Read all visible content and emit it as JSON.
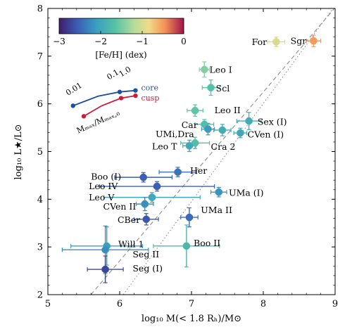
{
  "chart_data": {
    "type": "scatter",
    "xlabel": "log₁₀ M(< 1.8 Rₕ)/M⊙",
    "ylabel": "log₁₀ L★/L⊙",
    "xlim": [
      5,
      9
    ],
    "ylim": [
      2,
      8
    ],
    "xticks": [
      "5",
      "6",
      "7",
      "8",
      "9"
    ],
    "yticks": [
      "2",
      "3",
      "4",
      "5",
      "6",
      "7",
      "8"
    ],
    "grid": false,
    "colorbar": {
      "label": "[Fe/H]  (dex)",
      "range": [
        -3,
        0
      ],
      "ticks": [
        "−3",
        "−2",
        "−1",
        "0"
      ],
      "placement": "top-left"
    },
    "points": [
      {
        "name": "Sgr",
        "x": 8.7,
        "y": 7.32,
        "xerr": 0.1,
        "yerr": 0.12,
        "feh": -0.5
      },
      {
        "name": "For",
        "x": 8.18,
        "y": 7.3,
        "xerr": 0.12,
        "yerr": 0.1,
        "feh": -0.99
      },
      {
        "name": "Leo I",
        "x": 7.18,
        "y": 6.72,
        "xerr": 0.07,
        "yerr": 0.16,
        "feh": -1.43
      },
      {
        "name": "Scl",
        "x": 7.27,
        "y": 6.34,
        "xerr": 0.12,
        "yerr": 0.16,
        "feh": -1.68
      },
      {
        "name": "Leo II",
        "x": 7.05,
        "y": 5.86,
        "xerr": 0.11,
        "yerr": 0.12,
        "feh": -1.62
      },
      {
        "name": "Sex (I)",
        "x": 7.8,
        "y": 5.64,
        "xerr": 0.17,
        "yerr": 0.18,
        "feh": -1.93
      },
      {
        "name": "Car",
        "x": 7.18,
        "y": 5.57,
        "xerr": 0.13,
        "yerr": 0.1,
        "feh": -1.72
      },
      {
        "name": "UMi,Dra",
        "x": 7.23,
        "y": 5.47,
        "xerr": 0.09,
        "yerr": 0.12,
        "feh": -2.13
      },
      {
        "name": "UMi,Dra",
        "x": 7.43,
        "y": 5.45,
        "xerr": 0.12,
        "yerr": 0.12,
        "feh": -1.93
      },
      {
        "name": "CVen (I)",
        "x": 7.68,
        "y": 5.39,
        "xerr": 0.09,
        "yerr": 0.1,
        "feh": -1.98
      },
      {
        "name": "Cra 2",
        "x": 7.05,
        "y": 5.18,
        "xerr": 0.2,
        "yerr": 0.12,
        "feh": -1.7
      },
      {
        "name": "Leo T",
        "x": 6.97,
        "y": 5.12,
        "xerr": 0.09,
        "yerr": 0.12,
        "feh": -1.99
      },
      {
        "name": "Her",
        "x": 6.81,
        "y": 4.57,
        "xerr": 0.26,
        "yerr": 0.1,
        "feh": -2.41
      },
      {
        "name": "Boo (I)",
        "x": 6.33,
        "y": 4.46,
        "xerr": 0.4,
        "yerr": 0.1,
        "feh": -2.55
      },
      {
        "name": "Leo IV",
        "x": 6.52,
        "y": 4.27,
        "xerr": 0.8,
        "yerr": 0.1,
        "feh": -2.54
      },
      {
        "name": "UMa (I)",
        "x": 7.38,
        "y": 4.15,
        "xerr": 0.11,
        "yerr": 0.1,
        "feh": -2.18
      },
      {
        "name": "Leo V",
        "x": 6.45,
        "y": 4.04,
        "xerr": 0.67,
        "yerr": 0.1,
        "feh": -2.0
      },
      {
        "name": "CVen II",
        "x": 6.35,
        "y": 3.9,
        "xerr": 0.12,
        "yerr": 0.14,
        "feh": -2.21
      },
      {
        "name": "UMa II",
        "x": 6.97,
        "y": 3.62,
        "xerr": 0.12,
        "yerr": 0.2,
        "feh": -2.47
      },
      {
        "name": "CBer",
        "x": 6.37,
        "y": 3.58,
        "xerr": 0.17,
        "yerr": 0.12,
        "feh": -2.6
      },
      {
        "name": "Boo II",
        "x": 6.93,
        "y": 3.02,
        "xerr": 0.46,
        "yerr": 0.44,
        "feh": -1.79
      },
      {
        "name": "Will 1",
        "x": 5.82,
        "y": 3.02,
        "xerr": 0.5,
        "yerr": 0.4,
        "feh": -2.1
      },
      {
        "name": "Seg II",
        "x": 5.8,
        "y": 2.94,
        "xerr": 0.6,
        "yerr": 0.5,
        "feh": -2.22
      },
      {
        "name": "Seg (I)",
        "x": 5.8,
        "y": 2.53,
        "xerr": 0.25,
        "yerr": 0.28,
        "feh": -2.72
      }
    ],
    "point_labels": [
      {
        "text": "Sgr",
        "x": 7.9,
        "y": 7.32
      },
      {
        "text": "For",
        "x": 7.93,
        "y": 7.3
      },
      {
        "text": "Leo I",
        "x": 7.25,
        "y": 6.72
      },
      {
        "text": "Scl",
        "x": 7.34,
        "y": 6.33
      },
      {
        "text": "Leo II",
        "x": 7.32,
        "y": 5.87
      },
      {
        "text": "Sex (I)",
        "x": 7.92,
        "y": 5.63
      },
      {
        "text": "Car",
        "x": 6.86,
        "y": 5.56
      },
      {
        "text": "UMi,Dra",
        "x": 6.5,
        "y": 5.37
      },
      {
        "text": "CVen (I)",
        "x": 7.78,
        "y": 5.36
      },
      {
        "text": "Cra 2",
        "x": 7.27,
        "y": 5.1
      },
      {
        "text": "Leo T",
        "x": 6.45,
        "y": 5.11
      },
      {
        "text": "Her",
        "x": 6.98,
        "y": 4.6
      },
      {
        "text": "Boo (I)",
        "x": 5.6,
        "y": 4.48
      },
      {
        "text": "Leo IV",
        "x": 5.57,
        "y": 4.28
      },
      {
        "text": "UMa (I)",
        "x": 7.52,
        "y": 4.14
      },
      {
        "text": "Leo V",
        "x": 5.57,
        "y": 4.04
      },
      {
        "text": "CVen II",
        "x": 5.77,
        "y": 3.85
      },
      {
        "text": "UMa II",
        "x": 7.13,
        "y": 3.78
      },
      {
        "text": "CBer",
        "x": 5.97,
        "y": 3.57
      },
      {
        "text": "Boo II",
        "x": 7.03,
        "y": 3.08
      },
      {
        "text": "Will 1",
        "x": 5.98,
        "y": 3.06
      },
      {
        "text": "Seg II",
        "x": 6.18,
        "y": 2.85
      },
      {
        "text": "Seg (I)",
        "x": 6.18,
        "y": 2.55
      }
    ],
    "reference_lines": [
      {
        "style": "dashed",
        "x": [
          5.6,
          8.99
        ],
        "y": [
          2.0,
          8.0
        ]
      },
      {
        "style": "dotted",
        "x": [
          6.05,
          8.97
        ],
        "y": [
          2.0,
          8.0
        ]
      }
    ],
    "inset": {
      "axis_label": "Mₘₐₓ/Mₘₐₓ,₀",
      "series": [
        {
          "name": "core",
          "color": "#1f4e9e",
          "x": [
            5.35,
            5.7,
            6.0,
            6.22
          ],
          "y": [
            5.96,
            6.16,
            6.25,
            6.28
          ]
        },
        {
          "name": "cusp",
          "color": "#c81e3a",
          "x": [
            5.5,
            5.75,
            6.02,
            6.22
          ],
          "y": [
            5.74,
            5.96,
            6.12,
            6.17
          ]
        }
      ],
      "markers": [
        {
          "series": "core",
          "x": 5.35,
          "y": 5.96
        },
        {
          "series": "core",
          "x": 6.0,
          "y": 6.25
        },
        {
          "series": "core",
          "x": 6.22,
          "y": 6.28
        },
        {
          "series": "cusp",
          "x": 5.5,
          "y": 5.74
        },
        {
          "series": "cusp",
          "x": 6.02,
          "y": 6.12
        },
        {
          "series": "cusp",
          "x": 6.22,
          "y": 6.17
        }
      ],
      "tick_labels": [
        {
          "text": "0.01",
          "x": 5.28,
          "y": 6.17
        },
        {
          "text": "0.1",
          "x": 5.85,
          "y": 6.5
        },
        {
          "text": "1.0",
          "x": 6.02,
          "y": 6.56
        }
      ]
    }
  }
}
